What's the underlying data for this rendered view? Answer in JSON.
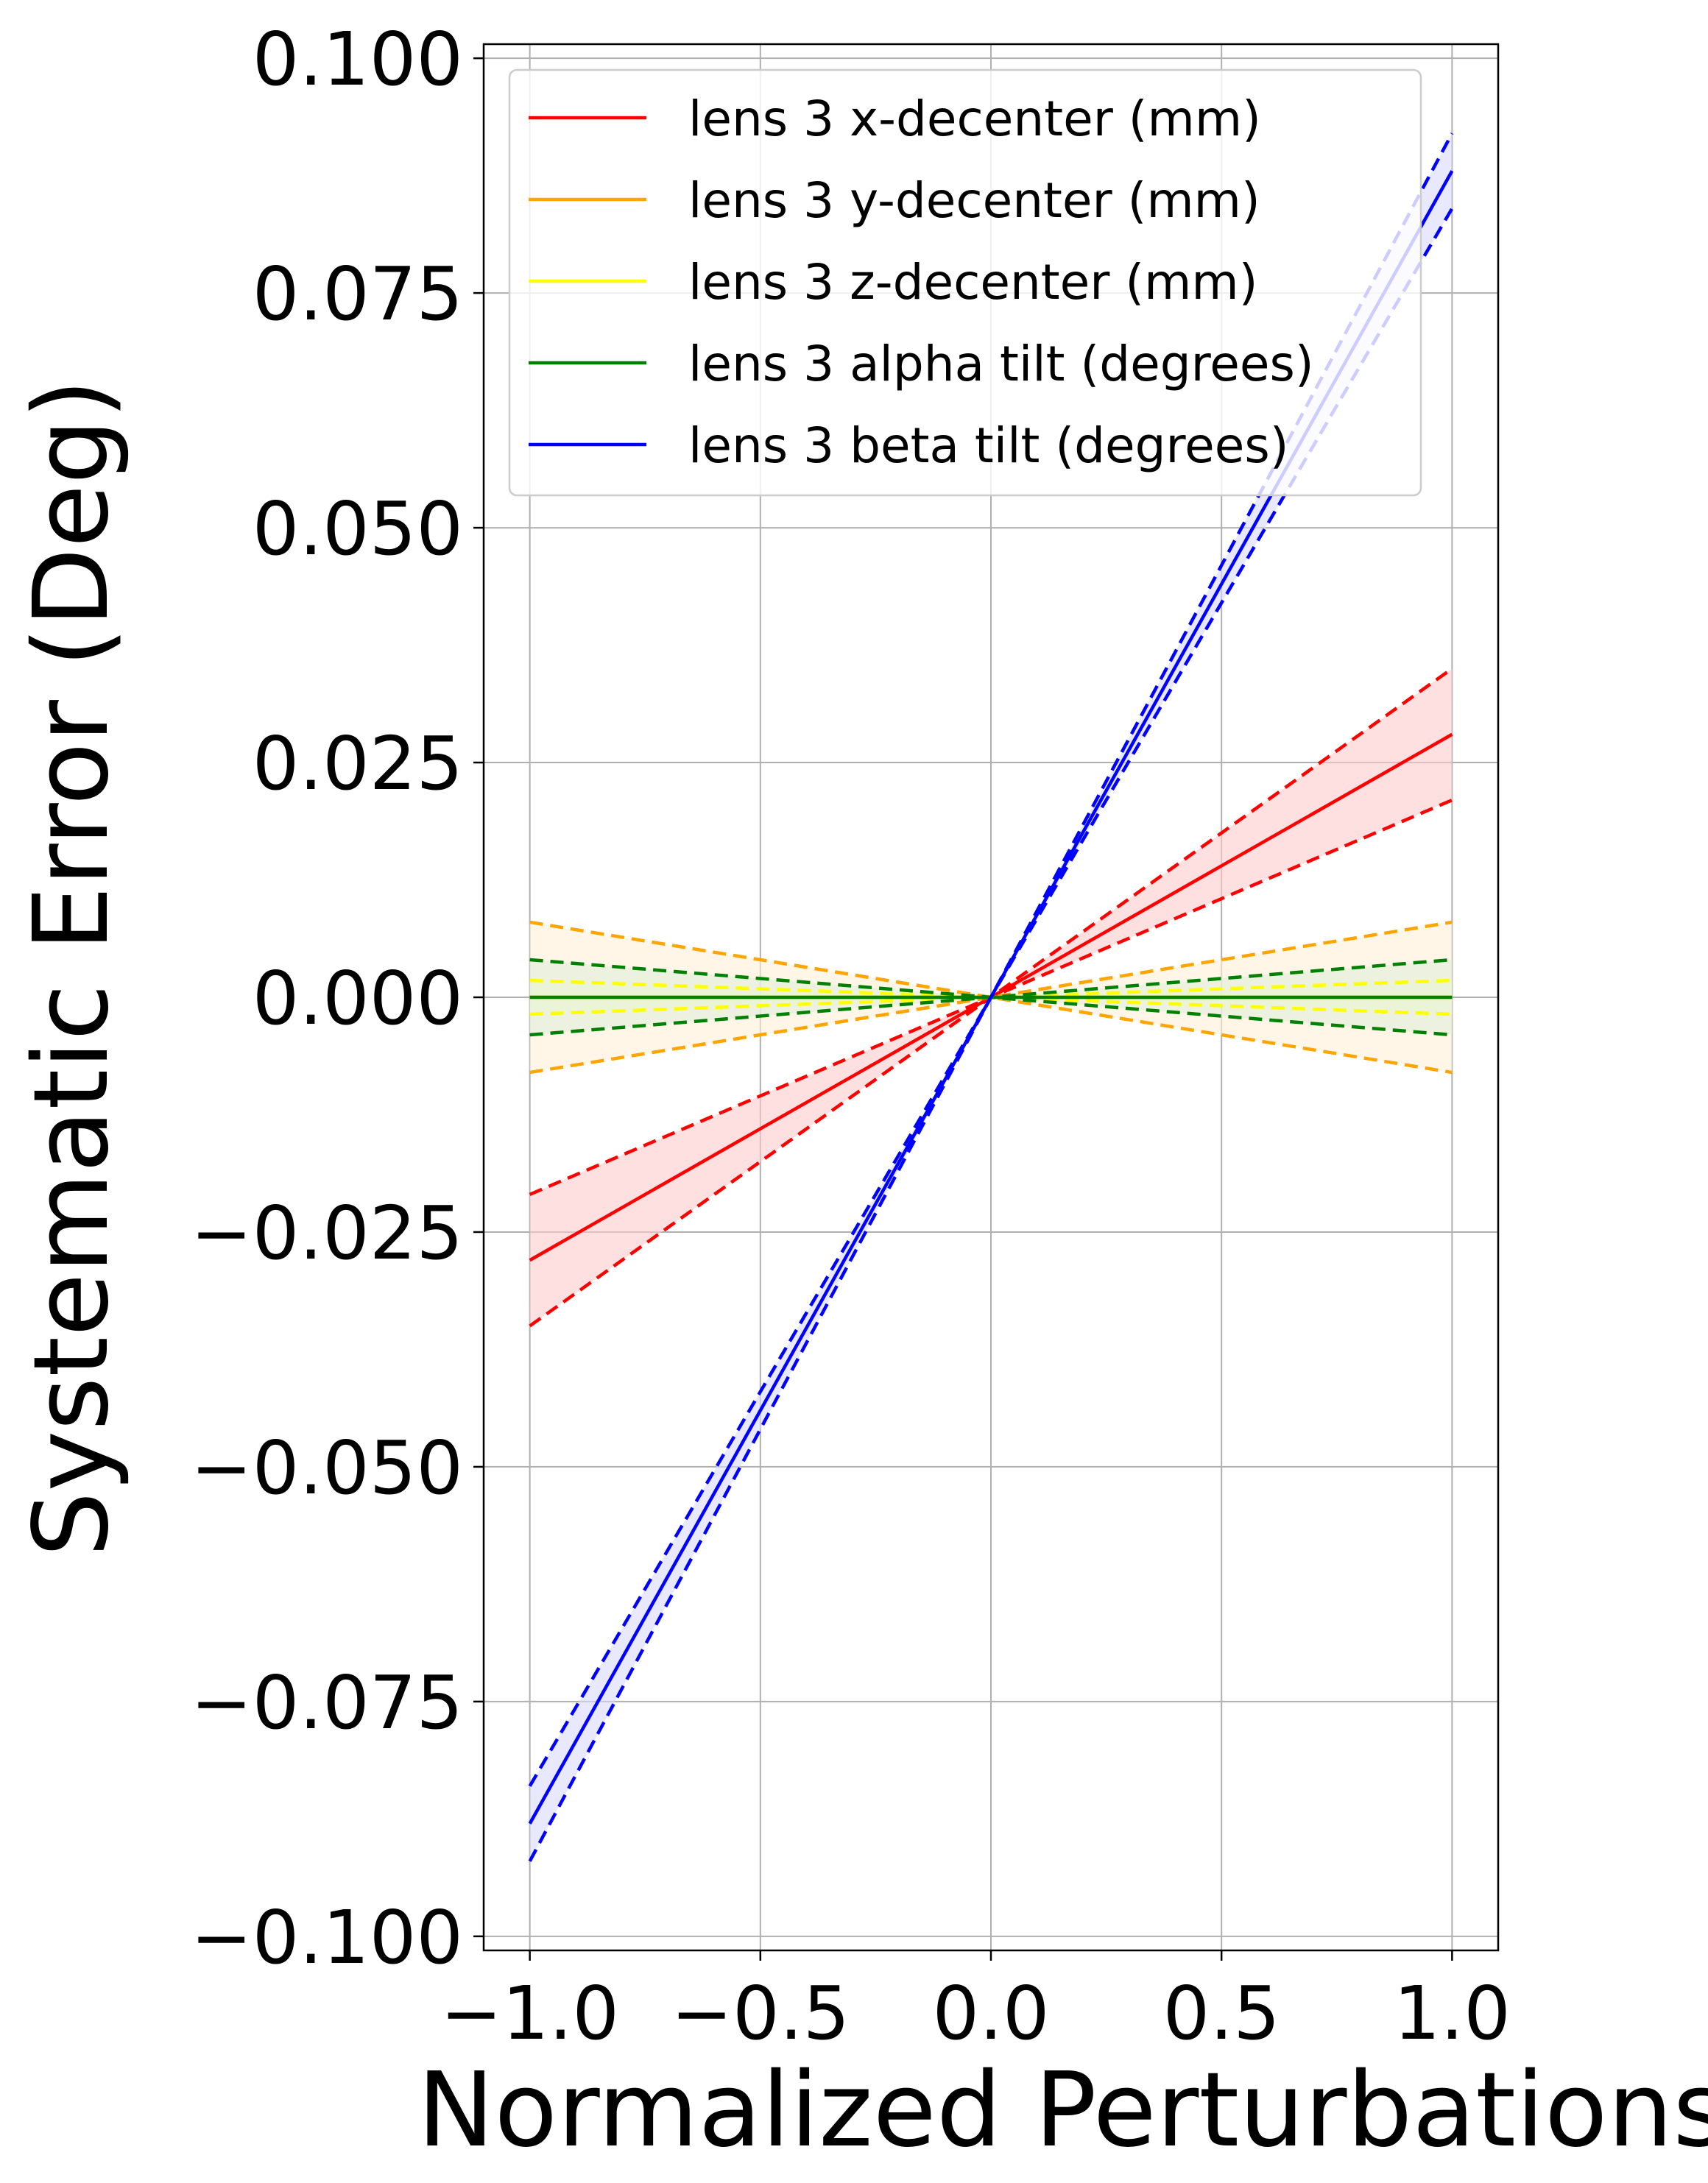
{
  "chart_data": {
    "type": "line",
    "title": "",
    "xlabel": "Normalized Perturbations",
    "ylabel": "Systematic Error (Deg)",
    "xlim": [
      -1.1,
      1.1
    ],
    "ylim": [
      -0.1015,
      0.1015
    ],
    "xticks": [
      -1.0,
      -0.5,
      0.0,
      0.5,
      1.0
    ],
    "xtick_labels": [
      "−1.0",
      "−0.5",
      "0.0",
      "0.5",
      "1.0"
    ],
    "yticks": [
      0.1,
      0.075,
      0.05,
      0.025,
      0.0,
      -0.025,
      -0.05,
      -0.075,
      -0.1
    ],
    "ytick_labels": [
      "0.100",
      "0.075",
      "0.050",
      "0.025",
      "0.000",
      "−0.025",
      "−0.050",
      "−0.075",
      "−0.100"
    ],
    "grid": true,
    "legend_position": "top-left",
    "x": [
      -1.0,
      1.0
    ],
    "series": [
      {
        "name": "lens 3 x-decenter (mm)",
        "color": "#ff0000",
        "fill": "#ffcccc",
        "values": [
          -0.028,
          0.028
        ],
        "upper": [
          -0.021,
          0.035
        ],
        "lower": [
          -0.035,
          0.021
        ]
      },
      {
        "name": "lens 3 y-decenter (mm)",
        "color": "#ffa500",
        "fill": "#fff0d9",
        "values": [
          0.0,
          0.0
        ],
        "upper": [
          0.008,
          0.008
        ],
        "lower": [
          -0.008,
          -0.008
        ]
      },
      {
        "name": "lens 3 z-decenter (mm)",
        "color": "#ffff00",
        "fill": "#ffffcc",
        "values": [
          0.0,
          0.0
        ],
        "upper": [
          0.0018,
          0.0018
        ],
        "lower": [
          -0.0018,
          -0.0018
        ]
      },
      {
        "name": "lens 3 alpha tilt (degrees)",
        "color": "#008000",
        "fill": "#e0f0d8",
        "values": [
          0.0,
          0.0
        ],
        "upper": [
          0.004,
          0.004
        ],
        "lower": [
          -0.004,
          -0.004
        ]
      },
      {
        "name": "lens 3 beta tilt (degrees)",
        "color": "#0000ff",
        "fill": "#d9d9ff",
        "values": [
          -0.088,
          0.088
        ],
        "upper": [
          -0.084,
          0.092
        ],
        "lower": [
          -0.092,
          0.084
        ]
      }
    ]
  }
}
